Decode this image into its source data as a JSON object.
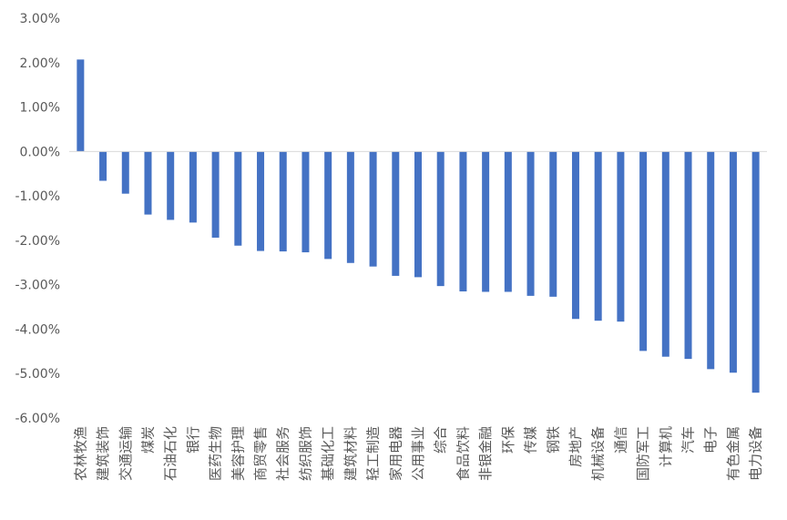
{
  "chart_data": {
    "type": "bar",
    "orientation": "vertical",
    "title": "",
    "xlabel": "",
    "ylabel": "",
    "ylim": [
      -6.0,
      3.0
    ],
    "yticks": [
      3.0,
      2.0,
      1.0,
      0.0,
      -1.0,
      -2.0,
      -3.0,
      -4.0,
      -5.0,
      -6.0
    ],
    "ytick_labels": [
      "3.00%",
      "2.00%",
      "1.00%",
      "0.00%",
      "-1.00%",
      "-2.00%",
      "-3.00%",
      "-4.00%",
      "-5.00%",
      "-6.00%"
    ],
    "grid": false,
    "legend": "none",
    "bar_color": "#4472C4",
    "categories": [
      "农林牧渔",
      "建筑装饰",
      "交通运输",
      "煤炭",
      "石油石化",
      "银行",
      "医药生物",
      "美容护理",
      "商贸零售",
      "社会服务",
      "纺织服饰",
      "基础化工",
      "建筑材料",
      "轻工制造",
      "家用电器",
      "公用事业",
      "综合",
      "食品饮料",
      "非银金融",
      "环保",
      "传媒",
      "钢铁",
      "房地产",
      "机械设备",
      "通信",
      "国防军工",
      "计算机",
      "汽车",
      "电子",
      "有色金属",
      "电力设备"
    ],
    "values": [
      2.07,
      -0.66,
      -0.95,
      -1.42,
      -1.54,
      -1.6,
      -1.94,
      -2.12,
      -2.24,
      -2.25,
      -2.27,
      -2.42,
      -2.51,
      -2.59,
      -2.8,
      -2.83,
      -3.03,
      -3.15,
      -3.16,
      -3.16,
      -3.25,
      -3.27,
      -3.77,
      -3.81,
      -3.83,
      -4.49,
      -4.62,
      -4.67,
      -4.9,
      -4.98,
      -5.43
    ]
  }
}
